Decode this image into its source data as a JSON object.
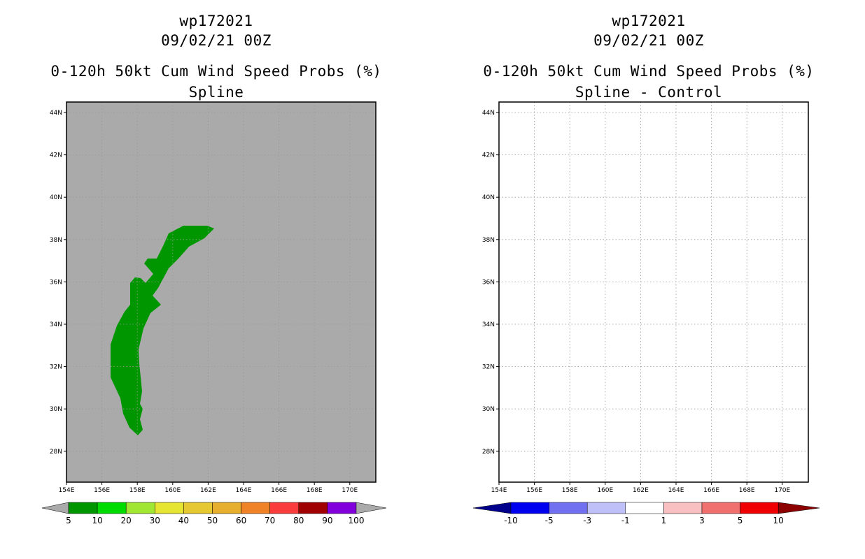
{
  "panels": [
    {
      "id": "left",
      "title_storm": "wp172021",
      "title_date": "09/02/21 00Z",
      "title_product": "0-120h 50kt Cum Wind Speed Probs (%)",
      "title_method": "Spline",
      "map_background": "#aaaaaa",
      "lat_labels": [
        "44N",
        "42N",
        "40N",
        "38N",
        "36N",
        "34N",
        "32N",
        "30N",
        "28N"
      ],
      "lon_labels": [
        "154E",
        "156E",
        "158E",
        "160E",
        "162E",
        "164E",
        "166E",
        "168E",
        "170E"
      ],
      "colorbar": {
        "labels": [
          "5",
          "10",
          "20",
          "30",
          "40",
          "50",
          "60",
          "70",
          "80",
          "90",
          "100"
        ],
        "colors": [
          "#aaaaaa",
          "#009600",
          "#00dc00",
          "#a0e632",
          "#e6e632",
          "#e6c832",
          "#e6af2d",
          "#f08228",
          "#fa3c3c",
          "#a00000",
          "#8200dc",
          "#aaaaaa"
        ]
      },
      "shaded_region": {
        "category": "5-10",
        "color": "#009600"
      }
    },
    {
      "id": "right",
      "title_storm": "wp172021",
      "title_date": "09/02/21 00Z",
      "title_product": "0-120h 50kt Cum Wind Speed Probs (%)",
      "title_method": "Spline - Control",
      "map_background": "#ffffff",
      "lat_labels": [
        "44N",
        "42N",
        "40N",
        "38N",
        "36N",
        "34N",
        "32N",
        "30N",
        "28N"
      ],
      "lon_labels": [
        "154E",
        "156E",
        "158E",
        "160E",
        "162E",
        "164E",
        "166E",
        "168E",
        "170E"
      ],
      "colorbar": {
        "labels": [
          "-10",
          "-5",
          "-3",
          "-1",
          "1",
          "3",
          "5",
          "10"
        ],
        "colors": [
          "#00008c",
          "#0000f0",
          "#7070f0",
          "#c0c0f8",
          "#ffffff",
          "#f8c0c0",
          "#f07070",
          "#f00000",
          "#8c0000"
        ]
      }
    }
  ]
}
